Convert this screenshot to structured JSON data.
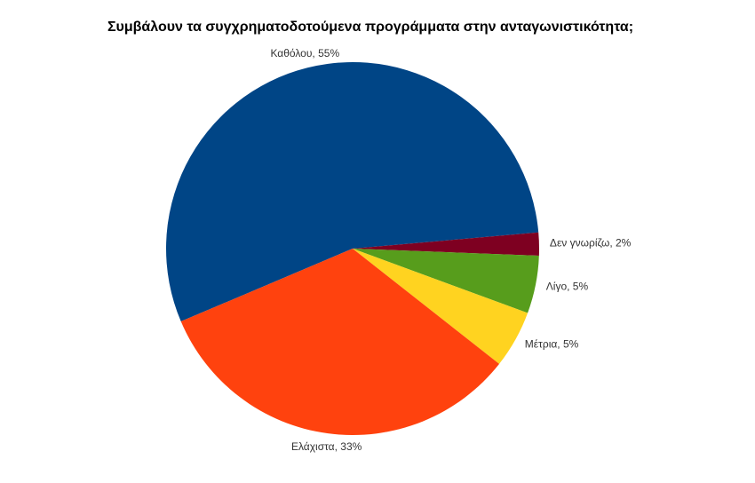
{
  "chart_data": {
    "type": "pie",
    "title": "Συμβάλουν τα συγχρηματοδοτούμενα προγράμματα στην ανταγωνιστικότητα;",
    "categories": [
      "Καθόλου, 55%",
      "Δεν γνωρίζω, 2%",
      "Λίγο, 5%",
      "Μέτρια, 5%",
      "Ελάχιστα, 33%"
    ],
    "values": [
      55,
      2,
      5,
      5,
      33
    ],
    "colors": [
      "#004586",
      "#7e0021",
      "#579d1c",
      "#ffd320",
      "#ff420e"
    ]
  }
}
